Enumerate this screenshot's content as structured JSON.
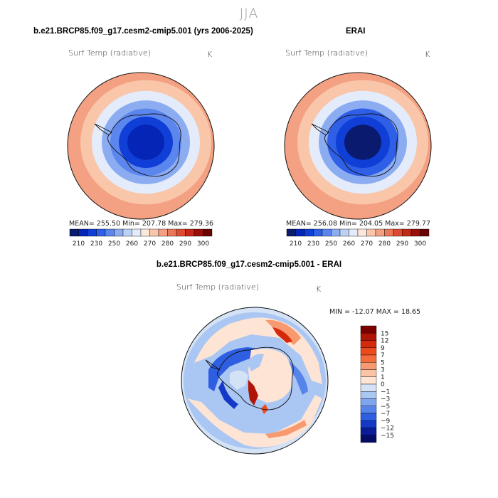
{
  "page": {
    "title": "JJA"
  },
  "panels": [
    {
      "title": "b.e21.BRCP85.f09_g17.cesm2-cmip5.001 (yrs 2006-2025)",
      "variable": "Surf Temp (radiative)",
      "units": "K",
      "stats": "MEAN= 255.50   Min= 207.78   Max= 279.36"
    },
    {
      "title": "ERAI",
      "variable": "Surf Temp (radiative)",
      "units": "K",
      "stats": "MEAN= 256.08   Min= 204.05   Max= 279.77"
    },
    {
      "title": "b.e21.BRCP85.f09_g17.cesm2-cmip5.001 - ERAI",
      "variable": "Surf Temp (radiative)",
      "units": "K",
      "stats": "MIN = -12.07  MAX =  18.65"
    }
  ],
  "chart_data": [
    {
      "type": "heatmap",
      "projection": "south polar stereographic",
      "title": "b.e21.BRCP85.f09_g17.cesm2-cmip5.001 (yrs 2006-2025)",
      "variable": "Surf Temp (radiative)",
      "units": "K",
      "mean": 255.5,
      "min": 207.78,
      "max": 279.36,
      "colorbar": {
        "levels": [
          210,
          220,
          230,
          240,
          250,
          255,
          260,
          265,
          270,
          275,
          280,
          285,
          290,
          295,
          300
        ],
        "tick_labels": [
          "210",
          "230",
          "250",
          "260",
          "270",
          "280",
          "290",
          "300"
        ],
        "colors": [
          "#0a1a6e",
          "#0525b6",
          "#0f3fd6",
          "#2e5fe6",
          "#5b86ee",
          "#8cacf2",
          "#bdd0f6",
          "#e4ecfb",
          "#fde8dc",
          "#f9c6aa",
          "#f4a082",
          "#ec7658",
          "#df4b30",
          "#c52816",
          "#9a0f07",
          "#6a0203"
        ]
      },
      "mean_field_rings_K": [
        210,
        225,
        240,
        252,
        262,
        271,
        276
      ]
    },
    {
      "type": "heatmap",
      "projection": "south polar stereographic",
      "title": "ERAI",
      "variable": "Surf Temp (radiative)",
      "units": "K",
      "mean": 256.08,
      "min": 204.05,
      "max": 279.77,
      "colorbar": {
        "levels": [
          210,
          220,
          230,
          240,
          250,
          255,
          260,
          265,
          270,
          275,
          280,
          285,
          290,
          295,
          300
        ],
        "tick_labels": [
          "210",
          "230",
          "250",
          "260",
          "270",
          "280",
          "290",
          "300"
        ],
        "colors": [
          "#0a1a6e",
          "#0525b6",
          "#0f3fd6",
          "#2e5fe6",
          "#5b86ee",
          "#8cacf2",
          "#bdd0f6",
          "#e4ecfb",
          "#fde8dc",
          "#f9c6aa",
          "#f4a082",
          "#ec7658",
          "#df4b30",
          "#c52816",
          "#9a0f07",
          "#6a0203"
        ]
      },
      "mean_field_rings_K": [
        208,
        223,
        238,
        251,
        262,
        271,
        277
      ]
    },
    {
      "type": "heatmap",
      "projection": "south polar stereographic",
      "title": "b.e21.BRCP85.f09_g17.cesm2-cmip5.001 - ERAI",
      "variable": "Surf Temp (radiative)",
      "units": "K",
      "min": -12.07,
      "max": 18.65,
      "colorbar": {
        "levels": [
          -15,
          -12,
          -9,
          -7,
          -5,
          -3,
          -1,
          0,
          1,
          3,
          5,
          7,
          9,
          12,
          15
        ],
        "tick_labels": [
          "15",
          "12",
          "9",
          "7",
          "5",
          "3",
          "1",
          "0",
          "−1",
          "−3",
          "−5",
          "−7",
          "−9",
          "−12",
          "−15"
        ],
        "colors": [
          "#7a0000",
          "#b01404",
          "#d42a0c",
          "#ec4a1c",
          "#f46c3c",
          "#f89a70",
          "#fbc4a6",
          "#fde4d4",
          "#d4e2f6",
          "#aac6f2",
          "#7ea6ee",
          "#5684ea",
          "#2e5ee2",
          "#1438c8",
          "#0a1c9a",
          "#040c66"
        ]
      }
    }
  ]
}
